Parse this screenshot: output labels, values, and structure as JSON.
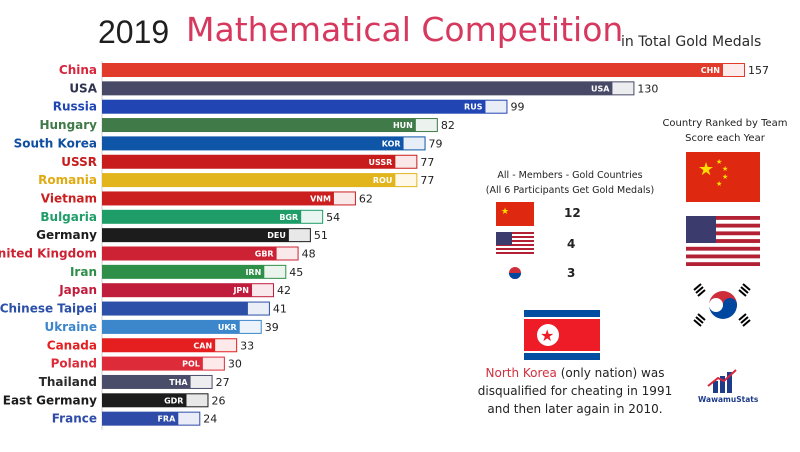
{
  "header": {
    "year": "2019",
    "title": "Mathematical Competition",
    "subtitle": "in Total Gold Medals"
  },
  "chart_data": {
    "type": "bar",
    "orientation": "horizontal",
    "title": "Mathematical Competition",
    "subtitle": "in Total Gold Medals",
    "xlim": [
      0,
      157
    ],
    "grid": false,
    "categories": [
      "China",
      "USA",
      "Russia",
      "Hungary",
      "South Korea",
      "USSR",
      "Romania",
      "Vietnam",
      "Bulgaria",
      "Germany",
      "United Kingdom",
      "Iran",
      "Japan",
      "Chinese Taipei",
      "Ukraine",
      "Canada",
      "Poland",
      "Thailand",
      "East Germany",
      "France"
    ],
    "codes": [
      "CHN",
      "USA",
      "RUS",
      "HUN",
      "KOR",
      "USSR",
      "ROU",
      "VNM",
      "BGR",
      "DEU",
      "GBR",
      "IRN",
      "JPN",
      "",
      "UKR",
      "CAN",
      "POL",
      "THA",
      "GDR",
      "FRA"
    ],
    "values": [
      157,
      130,
      99,
      82,
      79,
      77,
      77,
      62,
      54,
      51,
      48,
      45,
      42,
      41,
      39,
      33,
      30,
      27,
      26,
      24
    ],
    "bar_colors": [
      "#e03b2b",
      "#474966",
      "#2146b4",
      "#3f7a48",
      "#0f56a8",
      "#c81c1c",
      "#e3b51d",
      "#cb1f1f",
      "#1f9d68",
      "#1c1c1c",
      "#cc2233",
      "#2e8f49",
      "#c01d3c",
      "#2c4fa8",
      "#3c86cb",
      "#e51f1f",
      "#dd2b3a",
      "#4a4d6a",
      "#1c1c1c",
      "#2f4ba8"
    ],
    "label_colors": [
      "#d7263d",
      "#2f3350",
      "#1f46b4",
      "#3f7a48",
      "#0f4fa0",
      "#c81c1c",
      "#e0aa10",
      "#cb1f1f",
      "#1f9d68",
      "#1c1c1c",
      "#cc2233",
      "#2e8f49",
      "#c01d3c",
      "#2c4fa8",
      "#3c86cb",
      "#e51f1f",
      "#dd2b3a",
      "#2a2a2a",
      "#1c1c1c",
      "#2f4ba8"
    ]
  },
  "side_panel": {
    "rank_note": "Country Ranked by Team Score each Year",
    "gold_title_line1": "All - Members - Gold Countries",
    "gold_title_line2": "(All 6 Participants Get Gold Medals)",
    "gold_counts": [
      {
        "flag": "china-flag",
        "value": "12"
      },
      {
        "flag": "usa-flag",
        "value": "4"
      },
      {
        "flag": "south-korea-flag",
        "value": "3"
      }
    ],
    "north_korea_name": "North Korea",
    "north_korea_rest": " (only nation) was disqualified for cheating in 1991 and then later again in 2010.",
    "brand": "WawamuStats"
  }
}
